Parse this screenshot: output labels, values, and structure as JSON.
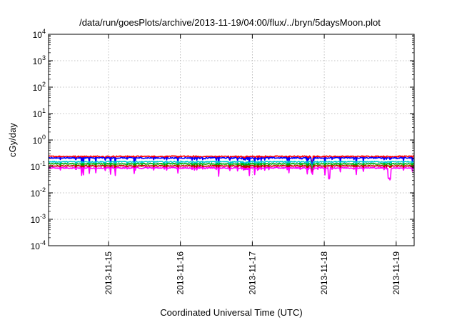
{
  "chart_data": {
    "type": "line",
    "title": "/data/run/goesPlots/archive/2013-11-19/04:00/flux/../bryn/5daysMoon.plot",
    "xlabel": "Coordinated Universal Time (UTC)",
    "ylabel": "cGy/day",
    "yscale": "log",
    "ylim": [
      0.0001,
      10000
    ],
    "xlim": [
      "2013-11-14T04:00",
      "2013-11-19T06:00"
    ],
    "x_ticks": [
      "2013-11-15",
      "2013-11-16",
      "2013-11-17",
      "2013-11-18",
      "2013-11-19"
    ],
    "y_ticks": [
      {
        "base": "10",
        "exp": "-4"
      },
      {
        "base": "10",
        "exp": "-3"
      },
      {
        "base": "10",
        "exp": "-2"
      },
      {
        "base": "10",
        "exp": "-1"
      },
      {
        "base": "10",
        "exp": "0"
      },
      {
        "base": "10",
        "exp": "1"
      },
      {
        "base": "10",
        "exp": "2"
      },
      {
        "base": "10",
        "exp": "3"
      },
      {
        "base": "10",
        "exp": "4"
      }
    ],
    "grid": true,
    "legend": "none",
    "series": [
      {
        "color": "#ff0000",
        "level": 0.24,
        "noise": 0.05,
        "values": []
      },
      {
        "color": "#0000ff",
        "level": 0.21,
        "noise": 0.05,
        "values": []
      },
      {
        "color": "#00cccc",
        "level": 0.15,
        "noise": 0.05,
        "values": []
      },
      {
        "color": "#00aa00",
        "level": 0.125,
        "noise": 0.04,
        "values": []
      },
      {
        "color": "#cc0000",
        "level": 0.105,
        "noise": 0.04,
        "values": []
      },
      {
        "color": "#ff00ff",
        "level": 0.088,
        "noise": 0.05,
        "values": []
      }
    ]
  }
}
